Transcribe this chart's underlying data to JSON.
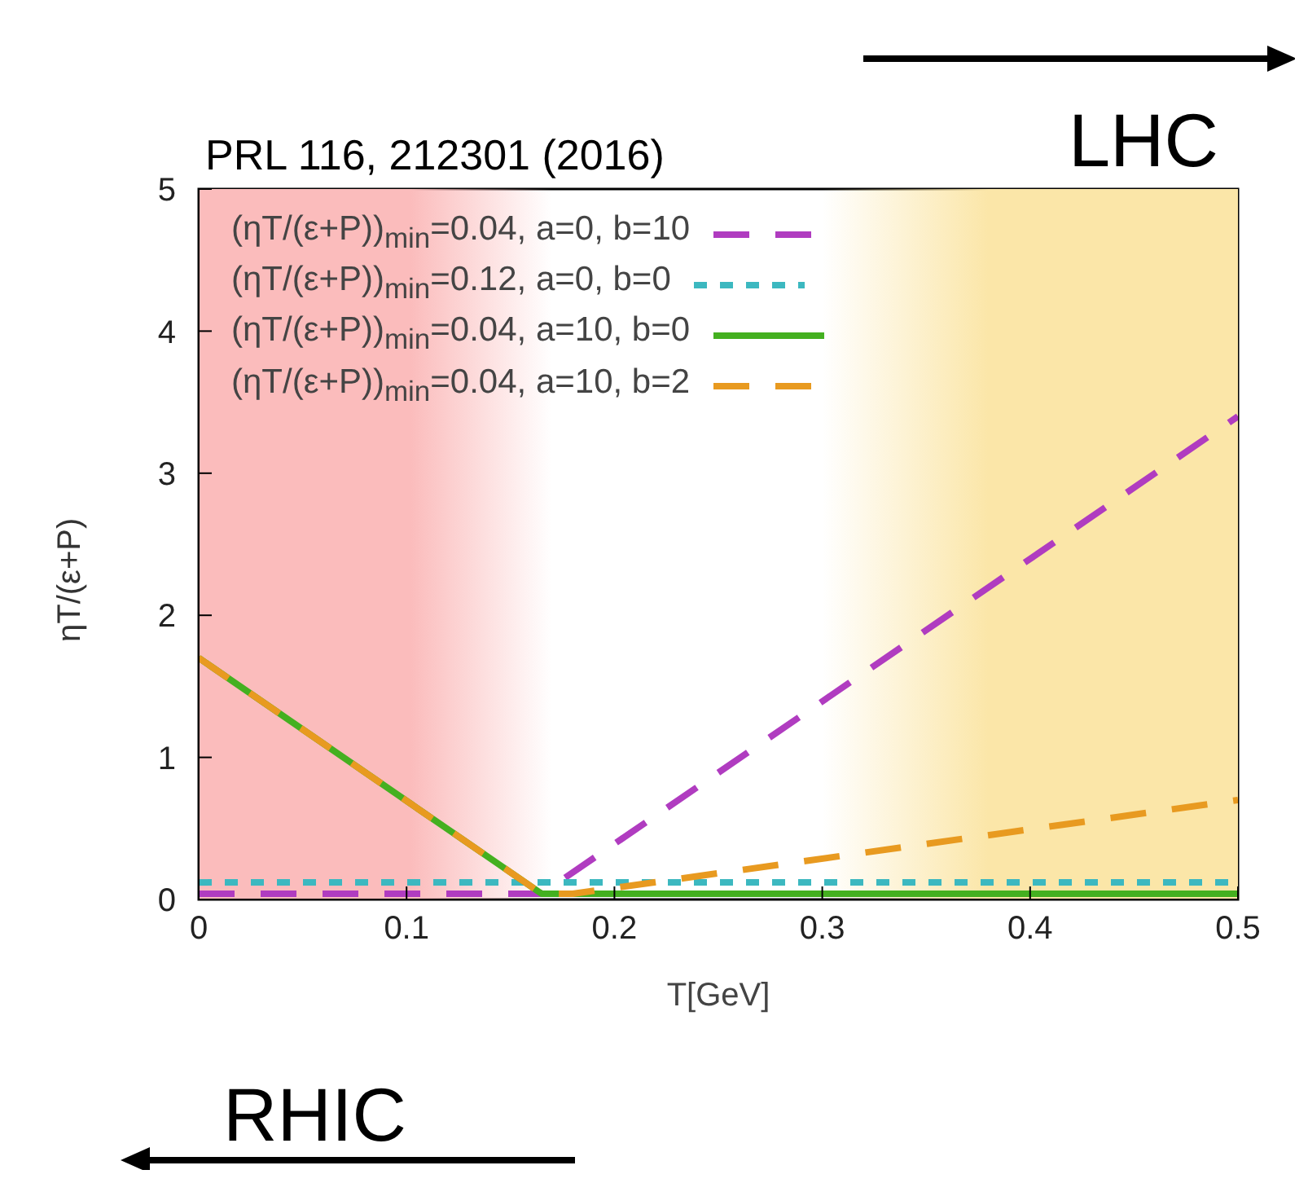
{
  "chart_data": {
    "type": "line",
    "title": "PRL 116, 212301 (2016)",
    "xlabel": "T[GeV]",
    "ylabel": "ηT/(ε+P)",
    "xlim": [
      0,
      0.5
    ],
    "xticks": [
      0,
      0.1,
      0.2,
      0.3,
      0.4,
      0.5
    ],
    "ylim": [
      0,
      5
    ],
    "yticks": [
      0,
      1,
      2,
      3,
      4,
      5
    ],
    "grid": false,
    "legend": "top",
    "marker": "none",
    "series": [
      {
        "name": "(ηT/(ε+P))$_{min}$=0.04, a=0, b=10",
        "color": "#b03cc0",
        "line_style": "dashed",
        "x": [
          0,
          0.165,
          0.5
        ],
        "values": [
          0.04,
          0.04,
          3.4
        ]
      },
      {
        "name": "(ηT/(ε+P))$_{min}$=0.12, a=0, b=0",
        "color": "#3cb8c0",
        "line_style": "dotted",
        "x": [
          0,
          0.5
        ],
        "values": [
          0.12,
          0.12
        ]
      },
      {
        "name": "(ηT/(ε+P))$_{min}$=0.04, a=10, b=0",
        "color": "#44b020",
        "line_style": "solid",
        "x": [
          0,
          0.165,
          0.5
        ],
        "values": [
          1.7,
          0.04,
          0.04
        ]
      },
      {
        "name": "(ηT/(ε+P))$_{min}$=0.04, a=10, b=2",
        "color": "#e89a20",
        "line_style": "dashed",
        "x": [
          0,
          0.165,
          0.18,
          0.5
        ],
        "values": [
          1.7,
          0.04,
          0.04,
          0.7
        ]
      }
    ],
    "bands": [
      {
        "axis": "x",
        "from": 0,
        "to": 0.17,
        "label": "RHIC",
        "color": "#fbbcbc"
      },
      {
        "axis": "x",
        "from": 0.3,
        "to": 0.5,
        "label": "LHC",
        "color": "#fbe6a8"
      }
    ]
  }
}
